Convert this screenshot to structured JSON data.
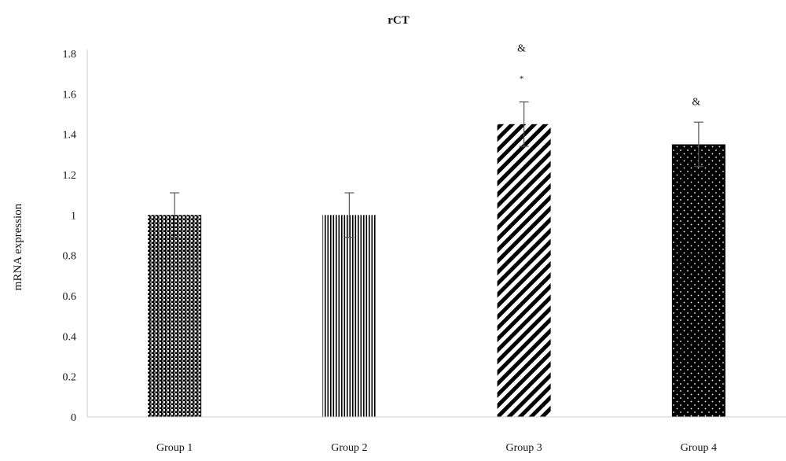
{
  "chart_data": {
    "type": "bar",
    "title": "rCT",
    "xlabel": "",
    "ylabel": "mRNA expression",
    "categories": [
      "Group 1",
      "Group 2",
      "Group 3",
      "Group 4"
    ],
    "values": [
      1.0,
      1.0,
      1.45,
      1.35
    ],
    "error": [
      0.11,
      0.11,
      0.11,
      0.11
    ],
    "ylim": [
      0,
      1.8
    ],
    "yticks": [
      "0",
      "0.2",
      "0.4",
      "0.6",
      "0.8",
      "1",
      "1.2",
      "1.4",
      "1.6",
      "1.8"
    ],
    "annotations": [
      {
        "category": "Group 3",
        "marks": [
          "&",
          "*"
        ]
      },
      {
        "category": "Group 4",
        "marks": [
          "&"
        ]
      }
    ],
    "fill_patterns": [
      "checker",
      "vertical-stripes",
      "diagonal-stripes",
      "dots"
    ],
    "colors": {
      "bar": "#000000",
      "axis": "#cccccc",
      "error": "#555555"
    },
    "grid": false,
    "legend": "none"
  }
}
